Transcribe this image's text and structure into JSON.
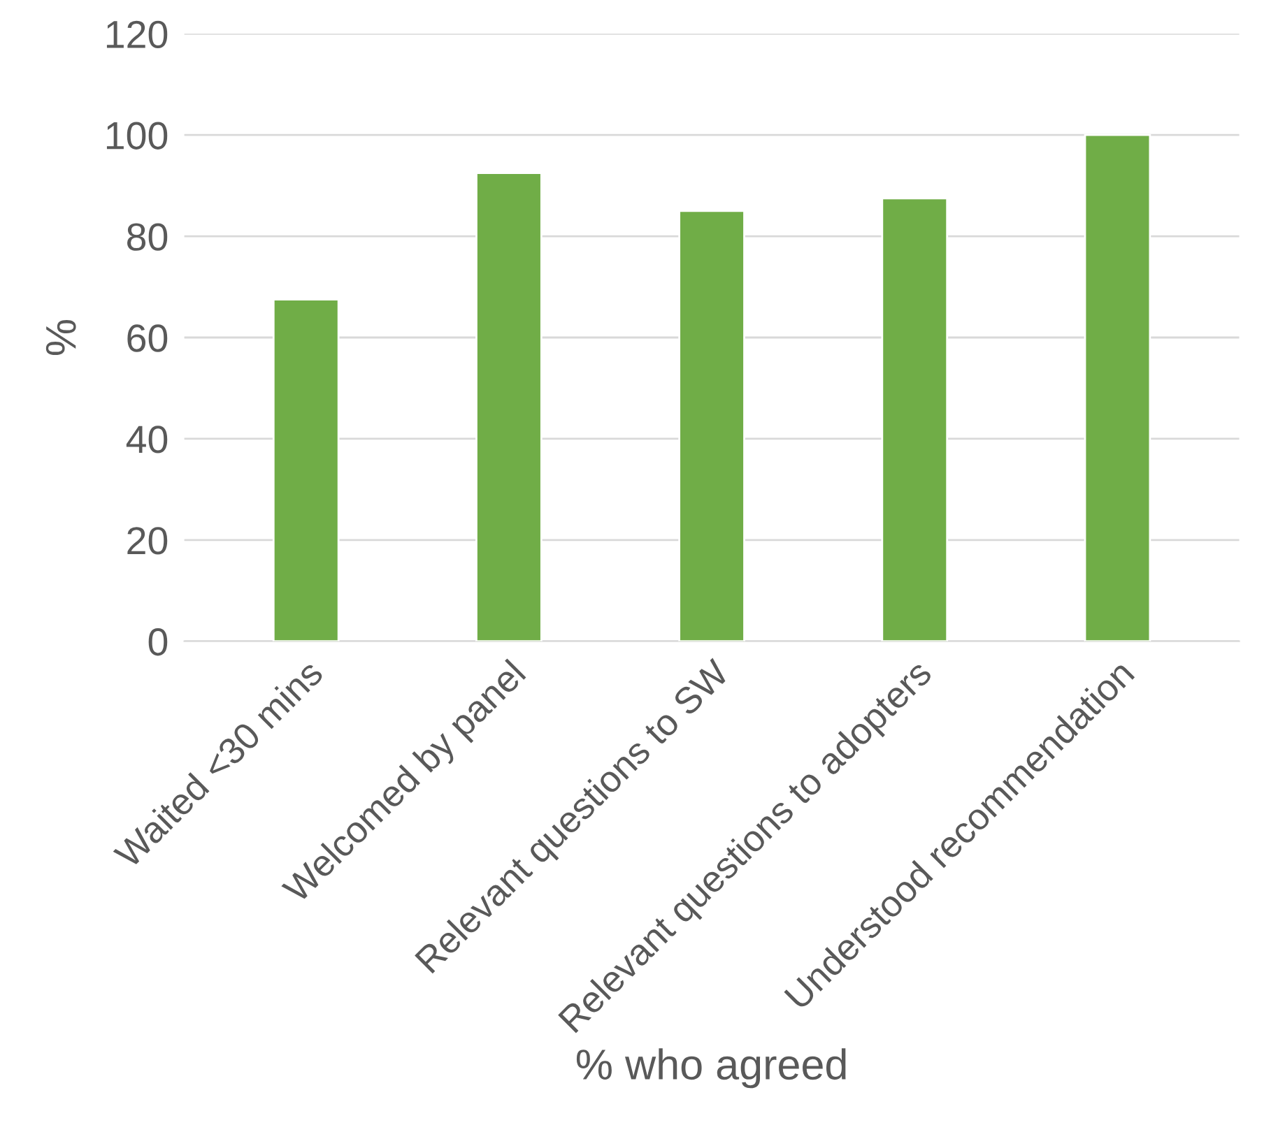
{
  "chart_data": {
    "type": "bar",
    "xlabel": "% who agreed",
    "ylabel": "%",
    "categories": [
      "Waited <30 mins",
      "Welcomed by panel",
      "Relevant questions to SW",
      "Relevant questions to adopters",
      "Understood recommendation"
    ],
    "values": [
      67.5,
      92.5,
      85,
      87.5,
      100
    ],
    "color": "#70ad47",
    "ylim": [
      0,
      120
    ],
    "yticks": [
      0,
      20,
      40,
      60,
      80,
      100,
      120
    ],
    "grid": "y"
  }
}
